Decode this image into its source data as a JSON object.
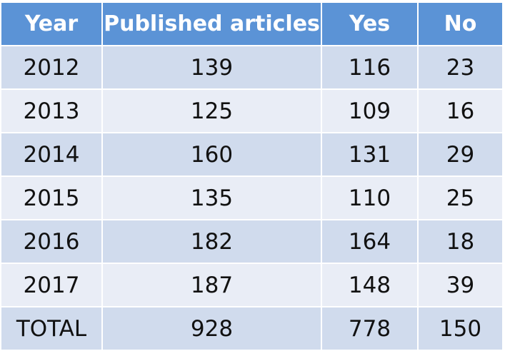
{
  "chart_data": {
    "type": "table",
    "columns": [
      "Year",
      "Published articles",
      "Yes",
      "No"
    ],
    "rows": [
      [
        "2012",
        "139",
        "116",
        "23"
      ],
      [
        "2013",
        "125",
        "109",
        "16"
      ],
      [
        "2014",
        "160",
        "131",
        "29"
      ],
      [
        "2015",
        "135",
        "110",
        "25"
      ],
      [
        "2016",
        "182",
        "164",
        "18"
      ],
      [
        "2017",
        "187",
        "148",
        "39"
      ],
      [
        "TOTAL",
        "928",
        "778",
        "150"
      ]
    ]
  },
  "colors": {
    "header_bg": "#5b93d6",
    "row_dark": "#d0dbed",
    "row_light": "#e9edf6"
  }
}
